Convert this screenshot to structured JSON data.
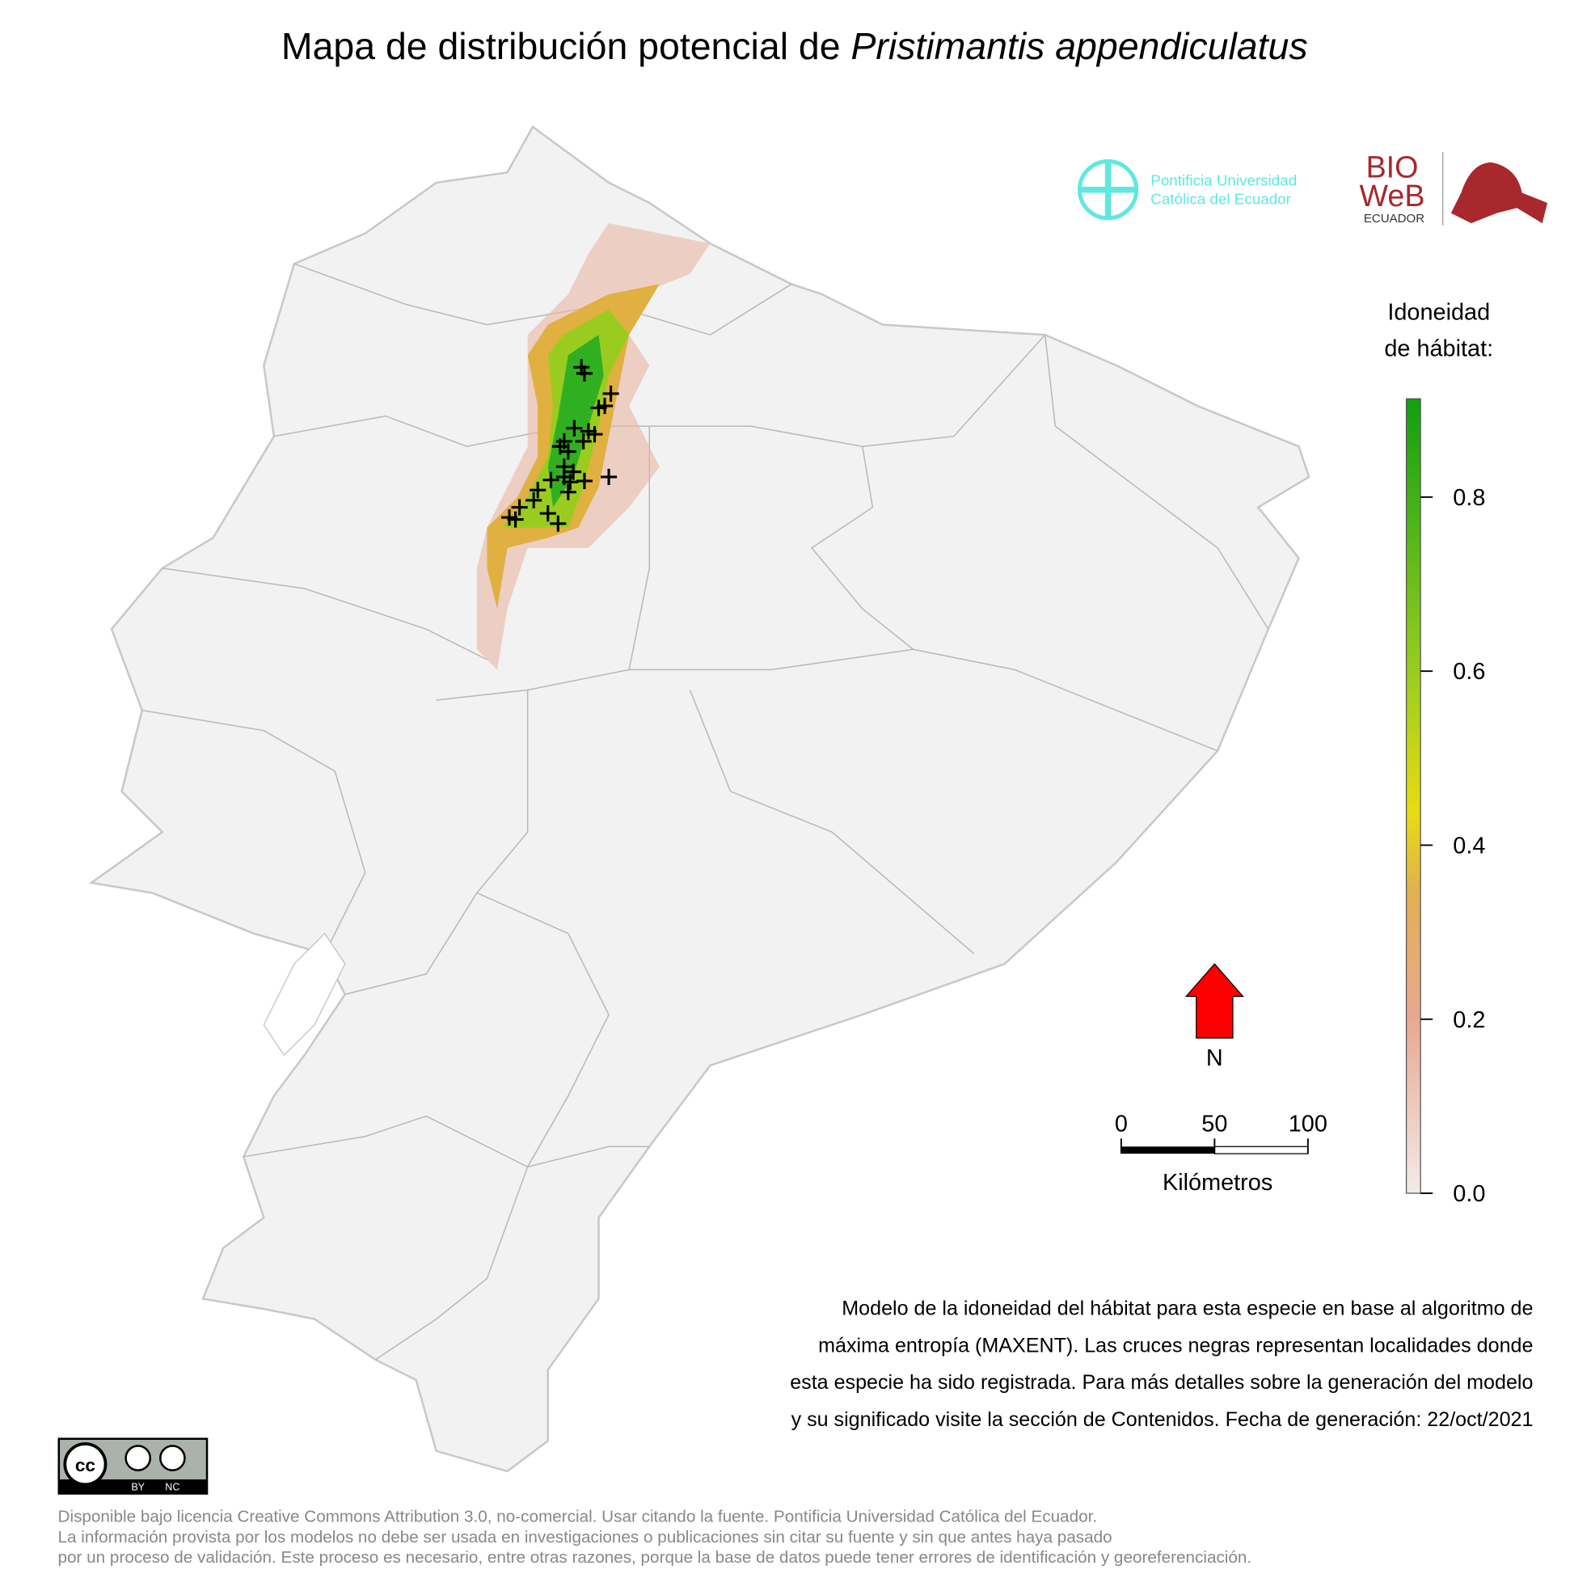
{
  "title": {
    "main": "Mapa de distribución potencial de",
    "species": "Pristimantis appendiculatus"
  },
  "logos": {
    "puce_line1": "Pontificia Universidad",
    "puce_line2": "Católica del Ecuador",
    "bio": "BIO",
    "web": "WeB",
    "ecuador": "ECUADOR"
  },
  "legend": {
    "title_line1": "Idoneidad",
    "title_line2": "de hábitat:",
    "lim": [
      0,
      0.913
    ],
    "ticks": [
      {
        "value": 0,
        "label": "0.0"
      },
      0.2,
      0.4,
      0.6,
      0.8
    ]
  },
  "north": "N",
  "scale_bar": {
    "ticks": [
      0,
      50,
      100
    ],
    "lim": [
      0,
      100
    ],
    "unit": "Kilómetros"
  },
  "description": [
    "Modelo de la idoneidad del hábitat para esta especie en base al algoritmo de",
    "máxima entropía (MAXENT). Las cruces negras representan localidades donde",
    "esta especie ha sido registrada. Para más detalles sobre la generación del modelo",
    "y su significado visite la sección de Contenidos. Fecha de generación: 22/oct/2021"
  ],
  "license_badge": {
    "cc": "cc",
    "by": "BY",
    "nc": "NC"
  },
  "license": [
    "Disponible bajo licencia Creative Commons Attribution 3.0, no-comercial. Usar citando la fuente. Pontificia Universidad Católica del Ecuador.",
    "La información provista por los modelos no debe ser usada en investigaciones o publicaciones sin citar su fuente y sin que antes haya pasado",
    "por un proceso de validación. Este proceso es necesario, entre otras razones, porque la base de datos puede tener errores de identificación y georeferenciación."
  ]
}
